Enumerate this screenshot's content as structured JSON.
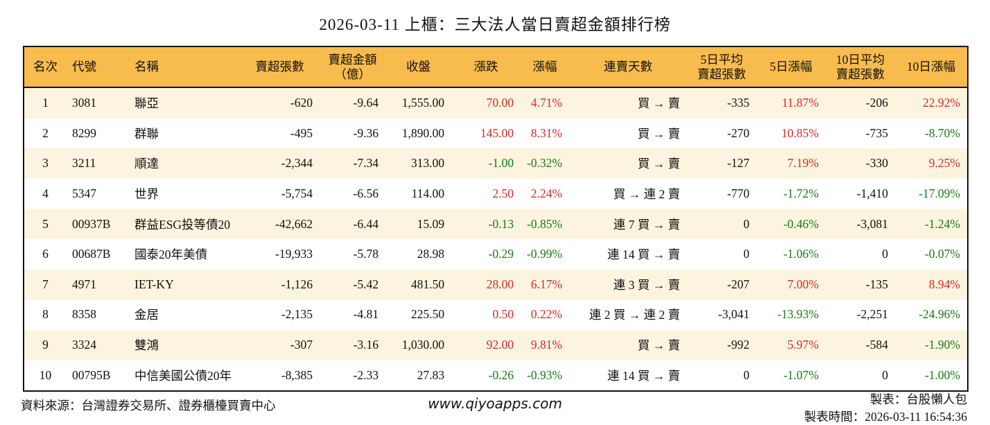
{
  "title": "2026-03-11 上櫃：三大法人當日賣超金額排行榜",
  "colors": {
    "header_bg": "#F8BB4D",
    "row_alt_bg": "#FCF4DF",
    "up_red": "#D42A2A",
    "down_green": "#157A15",
    "border": "#111111"
  },
  "chart_data": {
    "type": "table",
    "title": "2026-03-11 上櫃：三大法人當日賣超金額排行榜",
    "columns": [
      {
        "id": "rank",
        "label": "名次",
        "label2": "",
        "align": "center",
        "signed": false
      },
      {
        "id": "code",
        "label": "代號",
        "label2": "",
        "align": "left",
        "signed": false
      },
      {
        "id": "name",
        "label": "名稱",
        "label2": "",
        "align": "left",
        "signed": false
      },
      {
        "id": "sell_shares",
        "label": "賣超張數",
        "label2": "",
        "align": "right",
        "signed": false
      },
      {
        "id": "sell_amount",
        "label": "賣超金額",
        "label2": "（億）",
        "align": "right",
        "signed": false
      },
      {
        "id": "close",
        "label": "收盤",
        "label2": "",
        "align": "right",
        "signed": false
      },
      {
        "id": "change",
        "label": "漲跌",
        "label2": "",
        "align": "right",
        "signed": true
      },
      {
        "id": "change_pct",
        "label": "漲幅",
        "label2": "",
        "align": "right",
        "signed": true
      },
      {
        "id": "streak",
        "label": "連賣天數",
        "label2": "",
        "align": "right",
        "signed": false
      },
      {
        "id": "avg5",
        "label": "5日平均",
        "label2": "賣超張數",
        "align": "right",
        "signed": false
      },
      {
        "id": "pct5",
        "label": "5日漲幅",
        "label2": "",
        "align": "right",
        "signed": true
      },
      {
        "id": "avg10",
        "label": "10日平均",
        "label2": "賣超張數",
        "align": "right",
        "signed": false
      },
      {
        "id": "pct10",
        "label": "10日漲幅",
        "label2": "",
        "align": "right",
        "signed": true
      }
    ],
    "rows": [
      {
        "rank": "1",
        "code": "3081",
        "name": "聯亞",
        "sell_shares": "-620",
        "sell_amount": "-9.64",
        "close": "1,555.00",
        "change": "70.00",
        "change_pct": "4.71%",
        "streak": "買 → 賣",
        "avg5": "-335",
        "pct5": "11.87%",
        "avg10": "-206",
        "pct10": "22.92%"
      },
      {
        "rank": "2",
        "code": "8299",
        "name": "群聯",
        "sell_shares": "-495",
        "sell_amount": "-9.36",
        "close": "1,890.00",
        "change": "145.00",
        "change_pct": "8.31%",
        "streak": "買 → 賣",
        "avg5": "-270",
        "pct5": "10.85%",
        "avg10": "-735",
        "pct10": "-8.70%"
      },
      {
        "rank": "3",
        "code": "3211",
        "name": "順達",
        "sell_shares": "-2,344",
        "sell_amount": "-7.34",
        "close": "313.00",
        "change": "-1.00",
        "change_pct": "-0.32%",
        "streak": "買 → 賣",
        "avg5": "-127",
        "pct5": "7.19%",
        "avg10": "-330",
        "pct10": "9.25%"
      },
      {
        "rank": "4",
        "code": "5347",
        "name": "世界",
        "sell_shares": "-5,754",
        "sell_amount": "-6.56",
        "close": "114.00",
        "change": "2.50",
        "change_pct": "2.24%",
        "streak": "買 → 連 2 賣",
        "avg5": "-770",
        "pct5": "-1.72%",
        "avg10": "-1,410",
        "pct10": "-17.09%"
      },
      {
        "rank": "5",
        "code": "00937B",
        "name": "群益ESG投等債20",
        "sell_shares": "-42,662",
        "sell_amount": "-6.44",
        "close": "15.09",
        "change": "-0.13",
        "change_pct": "-0.85%",
        "streak": "連 7 買 → 賣",
        "avg5": "0",
        "pct5": "-0.46%",
        "avg10": "-3,081",
        "pct10": "-1.24%"
      },
      {
        "rank": "6",
        "code": "00687B",
        "name": "國泰20年美債",
        "sell_shares": "-19,933",
        "sell_amount": "-5.78",
        "close": "28.98",
        "change": "-0.29",
        "change_pct": "-0.99%",
        "streak": "連 14 買 → 賣",
        "avg5": "0",
        "pct5": "-1.06%",
        "avg10": "0",
        "pct10": "-0.07%"
      },
      {
        "rank": "7",
        "code": "4971",
        "name": "IET-KY",
        "sell_shares": "-1,126",
        "sell_amount": "-5.42",
        "close": "481.50",
        "change": "28.00",
        "change_pct": "6.17%",
        "streak": "連 3 買 → 賣",
        "avg5": "-207",
        "pct5": "7.00%",
        "avg10": "-135",
        "pct10": "8.94%"
      },
      {
        "rank": "8",
        "code": "8358",
        "name": "金居",
        "sell_shares": "-2,135",
        "sell_amount": "-4.81",
        "close": "225.50",
        "change": "0.50",
        "change_pct": "0.22%",
        "streak": "連 2 買 → 連 2 賣",
        "avg5": "-3,041",
        "pct5": "-13.93%",
        "avg10": "-2,251",
        "pct10": "-24.96%"
      },
      {
        "rank": "9",
        "code": "3324",
        "name": "雙鴻",
        "sell_shares": "-307",
        "sell_amount": "-3.16",
        "close": "1,030.00",
        "change": "92.00",
        "change_pct": "9.81%",
        "streak": "買 → 賣",
        "avg5": "-992",
        "pct5": "5.97%",
        "avg10": "-584",
        "pct10": "-1.90%"
      },
      {
        "rank": "10",
        "code": "00795B",
        "name": "中信美國公債20年",
        "sell_shares": "-8,385",
        "sell_amount": "-2.33",
        "close": "27.83",
        "change": "-0.26",
        "change_pct": "-0.93%",
        "streak": "連 14 買 → 賣",
        "avg5": "0",
        "pct5": "-1.07%",
        "avg10": "0",
        "pct10": "-1.00%"
      }
    ]
  },
  "footer": {
    "source": "資料來源：台灣證券交易所、證券櫃檯買賣中心",
    "website": "www.qiyoapps.com",
    "maker": "製表：台股懶人包",
    "made_at": "製表時間：2026-03-11 16:54:36"
  }
}
